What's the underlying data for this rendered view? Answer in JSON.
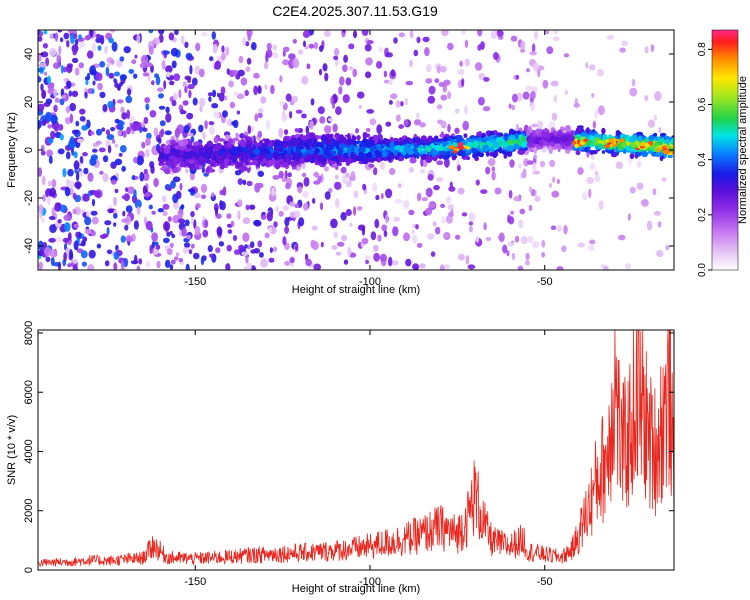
{
  "figure_title": "C2E4.2025.307.11.53.G19",
  "chart_data": [
    {
      "type": "heatmap",
      "name": "spectrogram",
      "xlabel": "Height of straight line (km)",
      "ylabel": "Frequency (Hz)",
      "xlim": [
        -195,
        -13
      ],
      "ylim": [
        -50,
        50
      ],
      "xticks": [
        -150,
        -100,
        -50
      ],
      "yticks": [
        -40,
        -20,
        0,
        20,
        40
      ],
      "colorbar": {
        "label": "Normalized spectral amplitude",
        "range": [
          0,
          0.87
        ],
        "ticks": [
          0.0,
          0.2,
          0.4,
          0.6,
          0.8
        ],
        "colormap": [
          "#ffffff",
          "#e6c8f5",
          "#c678f0",
          "#8a28e6",
          "#5a0fd9",
          "#1a1ae6",
          "#0a78ff",
          "#00e6e6",
          "#22d24a",
          "#a0e61e",
          "#ffe600",
          "#ff8a00",
          "#ff1e1e",
          "#ff2a8a"
        ]
      },
      "ridge": {
        "x": [
          -195,
          -150,
          -120,
          -100,
          -80,
          -60,
          -50,
          -40,
          -30,
          -20,
          -13
        ],
        "freq": [
          -3,
          -2,
          0,
          0,
          1,
          3,
          5,
          4,
          3,
          2,
          1
        ]
      },
      "peaks": [
        {
          "x": -75,
          "freq": 1,
          "amp": 0.85
        },
        {
          "x": -40,
          "freq": 3,
          "amp": 0.82
        },
        {
          "x": -30,
          "freq": 3,
          "amp": 0.84
        },
        {
          "x": -22,
          "freq": 2,
          "amp": 0.8
        },
        {
          "x": -15,
          "freq": 0,
          "amp": 0.86
        }
      ]
    },
    {
      "type": "line",
      "name": "snr",
      "xlabel": "Height of straight line (km)",
      "ylabel": "SNR (10 * v/v)",
      "xlim": [
        -195,
        -13
      ],
      "ylim": [
        0,
        8100
      ],
      "xticks": [
        -150,
        -100,
        -50
      ],
      "yticks": [
        0,
        2000,
        4000,
        6000,
        8000
      ],
      "color": "#e8261e",
      "series": [
        {
          "x": [
            -195,
            -185,
            -180,
            -175,
            -170,
            -165,
            -162,
            -158,
            -150,
            -145,
            -140,
            -135,
            -130,
            -125,
            -120,
            -115,
            -110,
            -105,
            -100,
            -95,
            -90,
            -85,
            -80,
            -75,
            -72,
            -70,
            -67,
            -65,
            -60,
            -56,
            -55,
            -50,
            -45,
            -42,
            -40,
            -37,
            -35,
            -32,
            -30,
            -28,
            -26,
            -24,
            -22,
            -20,
            -18,
            -16,
            -14,
            -13
          ],
          "values": [
            300,
            350,
            420,
            380,
            450,
            500,
            1050,
            520,
            480,
            520,
            560,
            620,
            650,
            700,
            720,
            760,
            820,
            900,
            1000,
            1150,
            1300,
            1500,
            1800,
            1500,
            2200,
            3200,
            1800,
            1200,
            1000,
            1300,
            800,
            650,
            550,
            900,
            1600,
            2800,
            3800,
            4800,
            8000,
            5000,
            5500,
            7200,
            6800,
            5400,
            5100,
            6500,
            7600,
            3000
          ]
        }
      ]
    }
  ]
}
